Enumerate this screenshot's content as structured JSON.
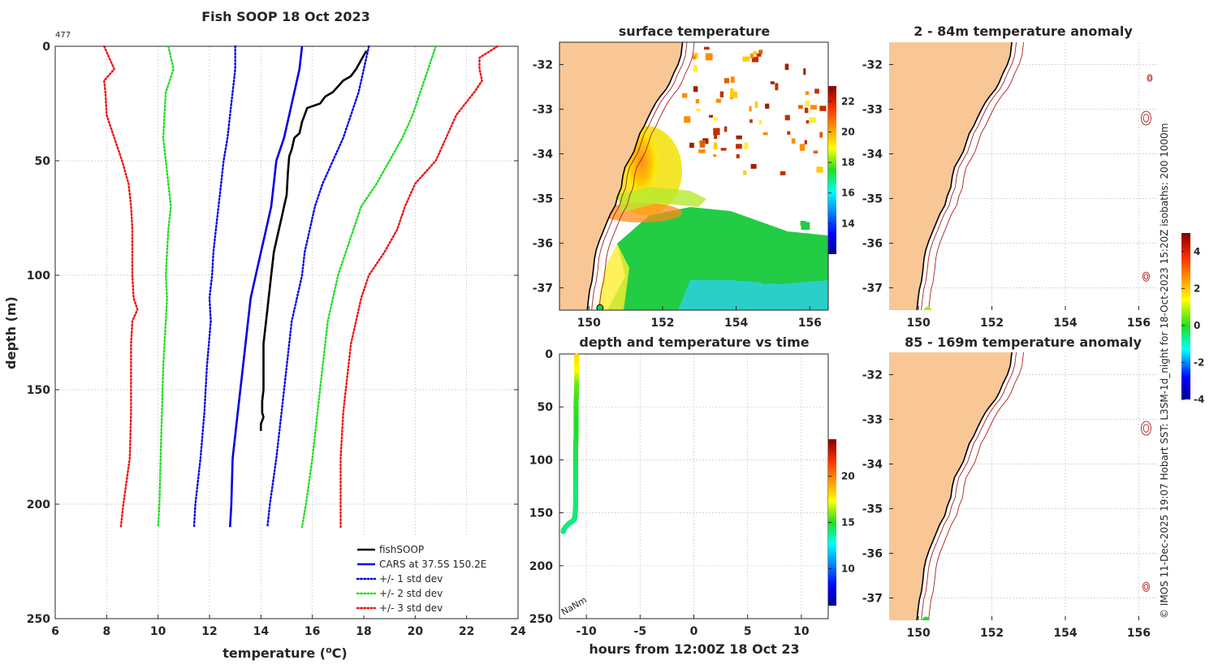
{
  "chart_data": [
    {
      "id": "profile",
      "type": "line",
      "title": "Fish SOOP 18 Oct 2023",
      "cast_id": "477",
      "xlabel_main": "temperature (",
      "xlabel_sup": "o",
      "xlabel_end": "C)",
      "ylabel": "depth (m)",
      "xlim": [
        6,
        24
      ],
      "ylim": [
        0,
        250
      ],
      "xticks": [
        6,
        8,
        10,
        12,
        14,
        16,
        18,
        20,
        22,
        24
      ],
      "yticks": [
        0,
        50,
        100,
        150,
        200,
        250
      ],
      "legend_position": "bottom-right",
      "series": [
        {
          "name": "fishSOOP",
          "color": "#000000",
          "style": "solid",
          "depth": [
            2,
            4,
            6,
            10,
            13,
            15,
            20,
            22,
            25,
            27,
            30,
            33,
            38,
            40,
            45,
            48,
            55,
            65,
            70,
            75,
            80,
            85,
            90,
            95,
            100,
            105,
            110,
            115,
            120,
            130,
            140,
            150,
            155,
            160,
            162,
            165,
            168
          ],
          "temp": [
            18.1,
            18.0,
            17.9,
            17.7,
            17.5,
            17.2,
            16.8,
            16.5,
            16.3,
            15.8,
            15.7,
            15.6,
            15.5,
            15.3,
            15.2,
            15.1,
            15.05,
            15.0,
            14.9,
            14.8,
            14.7,
            14.6,
            14.5,
            14.45,
            14.4,
            14.35,
            14.3,
            14.25,
            14.2,
            14.1,
            14.1,
            14.1,
            14.05,
            14.05,
            14.1,
            14.0,
            14.0
          ]
        },
        {
          "name": "CARS at 37.5S 150.2E",
          "color": "#0000e6",
          "style": "solid",
          "depth": [
            0,
            10,
            20,
            30,
            40,
            50,
            60,
            70,
            80,
            90,
            100,
            110,
            120,
            140,
            160,
            180,
            200,
            210
          ],
          "temp": [
            15.6,
            15.5,
            15.3,
            15.1,
            14.9,
            14.6,
            14.5,
            14.4,
            14.2,
            14.0,
            13.8,
            13.6,
            13.5,
            13.3,
            13.1,
            12.9,
            12.85,
            12.8
          ]
        },
        {
          "name": "+/- 1 std dev",
          "color": "#0000e6",
          "style": "dotted",
          "depth": [
            0,
            10,
            20,
            30,
            40,
            50,
            60,
            70,
            80,
            90,
            100,
            110,
            120,
            140,
            160,
            180,
            200,
            210
          ],
          "temp": [
            18.2,
            18.0,
            17.8,
            17.5,
            17.2,
            16.8,
            16.4,
            16.1,
            15.9,
            15.7,
            15.6,
            15.4,
            15.2,
            15.0,
            14.8,
            14.6,
            14.35,
            14.25
          ]
        },
        {
          "name": "+/- 1 std dev",
          "color": "#0000e6",
          "style": "dotted",
          "depth": [
            0,
            10,
            20,
            30,
            40,
            50,
            60,
            70,
            80,
            90,
            100,
            110,
            120,
            140,
            160,
            180,
            200,
            210
          ],
          "temp": [
            13.0,
            13.0,
            12.9,
            12.8,
            12.7,
            12.55,
            12.45,
            12.35,
            12.25,
            12.15,
            12.1,
            12.0,
            12.05,
            11.9,
            11.8,
            11.65,
            11.45,
            11.4
          ]
        },
        {
          "name": "+/- 2 std dev",
          "color": "#22dd22",
          "style": "dotted",
          "depth": [
            0,
            10,
            20,
            30,
            40,
            50,
            60,
            70,
            80,
            90,
            100,
            110,
            120,
            140,
            160,
            180,
            200,
            210
          ],
          "temp": [
            20.8,
            20.5,
            20.2,
            19.9,
            19.5,
            19.0,
            18.5,
            17.9,
            17.6,
            17.3,
            17.0,
            16.8,
            16.6,
            16.4,
            16.2,
            16.0,
            15.75,
            15.6
          ]
        },
        {
          "name": "+/- 2 std dev",
          "color": "#22dd22",
          "style": "dotted",
          "depth": [
            0,
            10,
            20,
            30,
            40,
            50,
            60,
            70,
            80,
            90,
            100,
            110,
            120,
            140,
            160,
            180,
            200,
            210
          ],
          "temp": [
            10.4,
            10.6,
            10.3,
            10.25,
            10.2,
            10.3,
            10.4,
            10.5,
            10.4,
            10.35,
            10.3,
            10.35,
            10.3,
            10.2,
            10.15,
            10.1,
            10.05,
            10.0
          ]
        },
        {
          "name": "+/- 3 std dev",
          "color": "#ee1111",
          "style": "dotted",
          "depth": [
            0,
            5,
            10,
            15,
            20,
            30,
            40,
            50,
            60,
            70,
            80,
            90,
            100,
            110,
            120,
            130,
            140,
            160,
            180,
            200,
            210
          ],
          "temp": [
            23.2,
            22.5,
            22.5,
            22.6,
            22.3,
            21.6,
            21.2,
            20.8,
            20.0,
            19.6,
            19.3,
            18.8,
            18.2,
            17.9,
            17.7,
            17.5,
            17.4,
            17.2,
            17.1,
            17.1,
            17.1
          ]
        },
        {
          "name": "+/- 3 std dev",
          "color": "#ee1111",
          "style": "dotted",
          "depth": [
            0,
            5,
            10,
            15,
            20,
            30,
            40,
            50,
            60,
            70,
            80,
            90,
            100,
            110,
            115,
            120,
            130,
            140,
            160,
            180,
            200,
            210
          ],
          "temp": [
            7.9,
            8.1,
            8.3,
            7.9,
            7.95,
            8.0,
            8.3,
            8.6,
            8.85,
            8.95,
            9.0,
            9.0,
            9.0,
            9.05,
            9.2,
            9.0,
            8.95,
            8.95,
            8.95,
            8.9,
            8.65,
            8.55
          ]
        }
      ],
      "legend": [
        "fishSOOP",
        "CARS at 37.5S 150.2E",
        "+/- 1 std dev",
        "+/- 2 std dev",
        "+/- 3 std dev"
      ]
    },
    {
      "id": "sst_map",
      "type": "heatmap",
      "title": "surface temperature",
      "xlim": [
        149.2,
        156.5
      ],
      "ylim": [
        -37.5,
        -31.5
      ],
      "xticks": [
        150,
        152,
        154,
        156
      ],
      "yticks": [
        -32,
        -33,
        -34,
        -35,
        -36,
        -37
      ],
      "colorbar_range": [
        12,
        23
      ],
      "colorbar_ticks": [
        14,
        16,
        18,
        20,
        22
      ],
      "marker": {
        "lon": 150.3,
        "lat": -37.45
      }
    },
    {
      "id": "depth_time",
      "type": "scatter",
      "title": "depth and temperature vs time",
      "xlabel": "hours from 12:00Z 18 Oct 23",
      "xlim": [
        -12.5,
        12.5
      ],
      "ylim": [
        0,
        250
      ],
      "xticks": [
        -10,
        -5,
        0,
        5,
        10
      ],
      "xtick_labels": [
        "-10",
        "-5",
        "0",
        "5",
        "10"
      ],
      "yticks": [
        0,
        50,
        100,
        150,
        200,
        250
      ],
      "colorbar_range": [
        6,
        24
      ],
      "colorbar_ticks": [
        10,
        15,
        20
      ],
      "annotation": "NaNm",
      "hours": [
        -10.9,
        -10.9,
        -10.9,
        -10.95,
        -10.95,
        -10.95,
        -11.0,
        -11.0,
        -11.0,
        -11.0,
        -11.0,
        -11.05,
        -11.1,
        -11.3,
        -11.6,
        -11.9,
        -12.1,
        -12.15
      ],
      "depth": [
        2,
        15,
        30,
        45,
        60,
        75,
        90,
        105,
        120,
        135,
        145,
        152,
        156,
        158,
        160,
        163,
        166,
        168
      ],
      "temp": [
        18.1,
        17.5,
        15.7,
        15.3,
        15.05,
        14.9,
        14.6,
        14.45,
        14.2,
        14.1,
        14.1,
        14.1,
        14.05,
        14.1,
        14.05,
        14.0,
        14.0,
        14.0
      ]
    },
    {
      "id": "anom1",
      "type": "heatmap",
      "title": "2 - 84m temperature anomaly",
      "xlim": [
        149.2,
        156.5
      ],
      "ylim": [
        -37.5,
        -31.5
      ],
      "xticks": [
        150,
        152,
        154,
        156
      ],
      "yticks": [
        -32,
        -33,
        -34,
        -35,
        -36,
        -37
      ],
      "marker": {
        "lon": 150.25,
        "lat": -37.5
      }
    },
    {
      "id": "anom2",
      "type": "heatmap",
      "title": "85 - 169m temperature anomaly",
      "xlim": [
        149.2,
        156.5
      ],
      "ylim": [
        -37.5,
        -31.5
      ],
      "xticks": [
        150,
        152,
        154,
        156
      ],
      "yticks": [
        -32,
        -33,
        -34,
        -35,
        -36,
        -37
      ],
      "marker": {
        "lon": 150.2,
        "lat": -37.5
      }
    },
    {
      "id": "anom_colorbar",
      "type": "heatmap",
      "colorbar_range": [
        -4,
        5
      ],
      "colorbar_ticks": [
        -4,
        -2,
        0,
        2,
        4
      ],
      "colorbar_tick_labels": [
        "-4",
        "-2",
        "0",
        "2",
        "4"
      ]
    }
  ],
  "credit": "© IMOS 11-Dec-2025 19:07 Hobart SST: L3SM-1d_night for 18-Oct-2023 15:20Z isobaths: 200  1000m",
  "colors": {
    "land": "#f9c796",
    "isobath": "#aa2020",
    "coast": "#000000"
  }
}
